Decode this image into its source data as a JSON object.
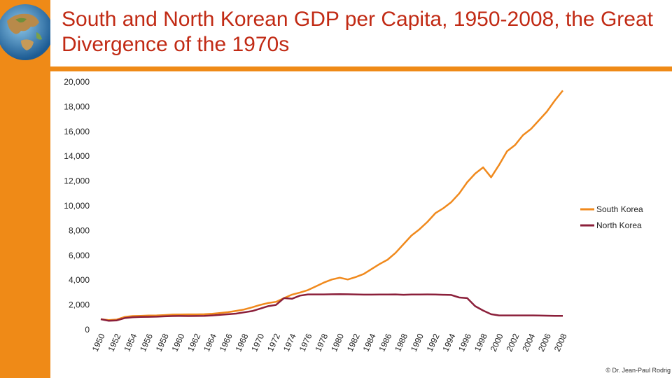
{
  "page": {
    "title": "South and North Korean GDP per Capita, 1950-2008, the Great Divergence of the 1970s",
    "credit": "© Dr. Jean-Paul Rodrig"
  },
  "colors": {
    "accent": "#ef8a17",
    "title": "#c12a14",
    "south_korea": "#f0891c",
    "north_korea": "#8b1f3a"
  },
  "chart_data": {
    "type": "line",
    "title": "South and North Korean GDP per Capita, 1950-2008, the Great Divergence of the 1970s",
    "xlabel": "",
    "ylabel": "",
    "ylim": [
      0,
      20000
    ],
    "yticks": [
      0,
      2000,
      4000,
      6000,
      8000,
      10000,
      12000,
      14000,
      16000,
      18000,
      20000
    ],
    "ytick_labels": [
      "0",
      "2,000",
      "4,000",
      "6,000",
      "8,000",
      "10,000",
      "12,000",
      "14,000",
      "16,000",
      "18,000",
      "20,000"
    ],
    "xtick_labels": [
      "1950",
      "1952",
      "1954",
      "1956",
      "1958",
      "1960",
      "1962",
      "1964",
      "1966",
      "1968",
      "1970",
      "1972",
      "1974",
      "1976",
      "1978",
      "1980",
      "1982",
      "1984",
      "1986",
      "1988",
      "1990",
      "1992",
      "1994",
      "1996",
      "1998",
      "2000",
      "2002",
      "2004",
      "2006",
      "2008"
    ],
    "x": [
      1950,
      1951,
      1952,
      1953,
      1954,
      1955,
      1956,
      1957,
      1958,
      1959,
      1960,
      1961,
      1962,
      1963,
      1964,
      1965,
      1966,
      1967,
      1968,
      1969,
      1970,
      1971,
      1972,
      1973,
      1974,
      1975,
      1976,
      1977,
      1978,
      1979,
      1980,
      1981,
      1982,
      1983,
      1984,
      1985,
      1986,
      1987,
      1988,
      1989,
      1990,
      1991,
      1992,
      1993,
      1994,
      1995,
      1996,
      1997,
      1998,
      1999,
      2000,
      2001,
      2002,
      2003,
      2004,
      2005,
      2006,
      2007,
      2008
    ],
    "legend_position": "right",
    "grid": false,
    "series": [
      {
        "name": "South Korea",
        "color": "#f0891c",
        "values": [
          850,
          780,
          820,
          1030,
          1100,
          1120,
          1140,
          1150,
          1180,
          1220,
          1230,
          1240,
          1240,
          1250,
          1280,
          1350,
          1420,
          1520,
          1630,
          1800,
          2000,
          2150,
          2250,
          2550,
          2830,
          3000,
          3200,
          3500,
          3800,
          4050,
          4200,
          4050,
          4250,
          4500,
          4900,
          5300,
          5650,
          6200,
          6900,
          7600,
          8100,
          8700,
          9400,
          9800,
          10300,
          11000,
          11900,
          12600,
          13100,
          12300,
          13300,
          14400,
          14900,
          15700,
          16200,
          16900,
          17600,
          18500,
          19300
        ]
      },
      {
        "name": "North Korea",
        "color": "#8b1f3a",
        "values": [
          850,
          720,
          750,
          940,
          1000,
          1030,
          1040,
          1050,
          1080,
          1100,
          1105,
          1100,
          1110,
          1120,
          1150,
          1200,
          1250,
          1300,
          1400,
          1500,
          1700,
          1900,
          2000,
          2550,
          2500,
          2750,
          2850,
          2850,
          2850,
          2860,
          2870,
          2860,
          2850,
          2830,
          2830,
          2840,
          2840,
          2850,
          2820,
          2840,
          2840,
          2850,
          2840,
          2820,
          2800,
          2600,
          2550,
          1900,
          1550,
          1250,
          1150,
          1150,
          1150,
          1150,
          1150,
          1140,
          1130,
          1120,
          1120
        ]
      }
    ]
  }
}
